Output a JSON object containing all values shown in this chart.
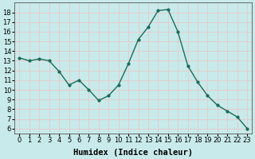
{
  "x": [
    0,
    1,
    2,
    3,
    4,
    5,
    6,
    7,
    8,
    9,
    10,
    11,
    12,
    13,
    14,
    15,
    16,
    17,
    18,
    19,
    20,
    21,
    22,
    23
  ],
  "y": [
    13.3,
    13.0,
    13.2,
    13.0,
    11.9,
    10.5,
    11.0,
    10.0,
    8.9,
    9.4,
    10.5,
    12.7,
    15.2,
    16.5,
    18.2,
    18.3,
    16.0,
    12.5,
    10.8,
    9.4,
    8.4,
    7.8,
    7.2,
    6.0
  ],
  "xlabel": "Humidex (Indice chaleur)",
  "line_color": "#1a6b5a",
  "marker": "o",
  "marker_size": 2.0,
  "bg_color": "#c8eaea",
  "grid_color": "#e8c8c8",
  "ylim": [
    5.5,
    19.0
  ],
  "xlim": [
    -0.5,
    23.5
  ],
  "yticks": [
    6,
    7,
    8,
    9,
    10,
    11,
    12,
    13,
    14,
    15,
    16,
    17,
    18
  ],
  "xticks": [
    0,
    1,
    2,
    3,
    4,
    5,
    6,
    7,
    8,
    9,
    10,
    11,
    12,
    13,
    14,
    15,
    16,
    17,
    18,
    19,
    20,
    21,
    22,
    23
  ],
  "tick_fontsize": 6,
  "xlabel_fontsize": 7.5,
  "linewidth": 1.0
}
